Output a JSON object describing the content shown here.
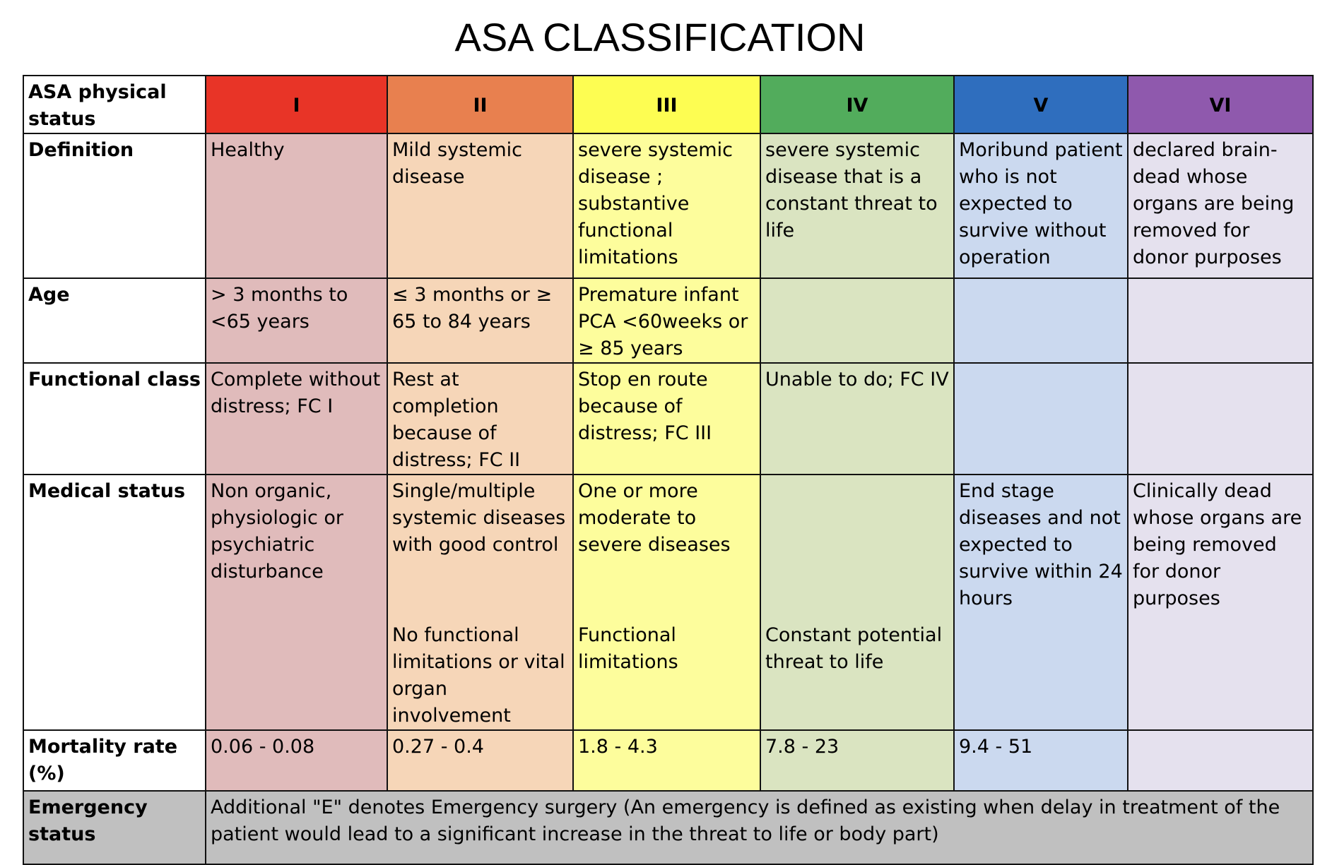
{
  "title": "ASA CLASSIFICATION",
  "header": {
    "label": "ASA physical status",
    "classes": [
      {
        "label": "I",
        "color": "#e83427"
      },
      {
        "label": "II",
        "color": "#e8804f"
      },
      {
        "label": "III",
        "color": "#fdfd52"
      },
      {
        "label": "IV",
        "color": "#52ac5c"
      },
      {
        "label": "V",
        "color": "#2f6ebe"
      },
      {
        "label": "VI",
        "color": "#8f59ad"
      }
    ]
  },
  "body_colors": [
    "#e0bbbb",
    "#f6d6b8",
    "#fdfd9c",
    "#dae4c1",
    "#cbd9ef",
    "#e5e1ee"
  ],
  "rows": [
    {
      "label": "Definition",
      "cells": [
        "Healthy",
        "Mild systemic disease",
        "severe systemic disease ; substantive functional limitations",
        "severe systemic disease that is a constant threat to life",
        "Moribund patient who is not expected to survive without operation",
        "declared brain-dead whose organs are being removed for donor purposes"
      ]
    },
    {
      "label": "Age",
      "cells": [
        "> 3 months to <65 years",
        "≤ 3 months or ≥ 65 to 84 years",
        "Premature infant PCA <60weeks or ≥ 85 years",
        "",
        "",
        ""
      ]
    },
    {
      "label": "Functional class",
      "cells": [
        "Complete without distress; FC I",
        "Rest at completion because of distress; FC II",
        "Stop en route because of distress; FC III",
        "Unable to do; FC IV",
        "",
        ""
      ]
    },
    {
      "label": "Medical status",
      "cells": [
        {
          "top": "Non organic, physiologic or psychiatric disturbance",
          "bottom": ""
        },
        {
          "top": "Single/multiple systemic diseases with good control",
          "bottom": "No functional limitations or vital organ involvement"
        },
        {
          "top": "One or more moderate to severe diseases",
          "bottom": "Functional limitations"
        },
        {
          "top": "",
          "bottom": "Constant potential threat to life"
        },
        {
          "top": "End stage diseases and not expected to survive within 24 hours",
          "bottom": ""
        },
        {
          "top": "Clinically dead whose organs are being removed for donor purposes",
          "bottom": ""
        }
      ]
    },
    {
      "label": "Mortality rate (%)",
      "cells": [
        "0.06 - 0.08",
        "0.27 - 0.4",
        "1.8 - 4.3",
        "7.8 - 23",
        "9.4 - 51",
        ""
      ]
    }
  ],
  "emergency": {
    "label": "Emergency status",
    "text": "Additional \"E\" denotes Emergency surgery (An emergency is defined as existing when delay in treatment of the patient would lead to a significant increase in the threat to life or body part)"
  }
}
